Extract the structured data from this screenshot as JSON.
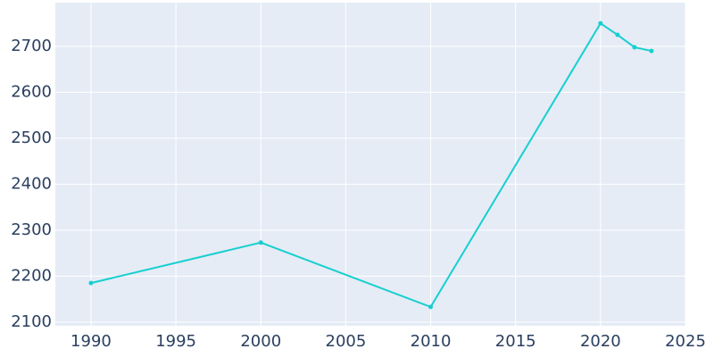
{
  "chart_data": {
    "type": "line",
    "x": [
      1990,
      2000,
      2010,
      2020,
      2021,
      2022,
      2023
    ],
    "series": [
      {
        "color": "#17cfcf",
        "values": [
          2185,
          2273,
          2133,
          2750,
          2725,
          2698,
          2690
        ]
      }
    ],
    "xlim": [
      1987.9,
      2025
    ],
    "ylim": [
      2092,
      2795
    ],
    "xticks": [
      1990,
      1995,
      2000,
      2005,
      2010,
      2015,
      2020,
      2025
    ],
    "yticks": [
      2100,
      2200,
      2300,
      2400,
      2500,
      2600,
      2700
    ],
    "grid": true
  }
}
